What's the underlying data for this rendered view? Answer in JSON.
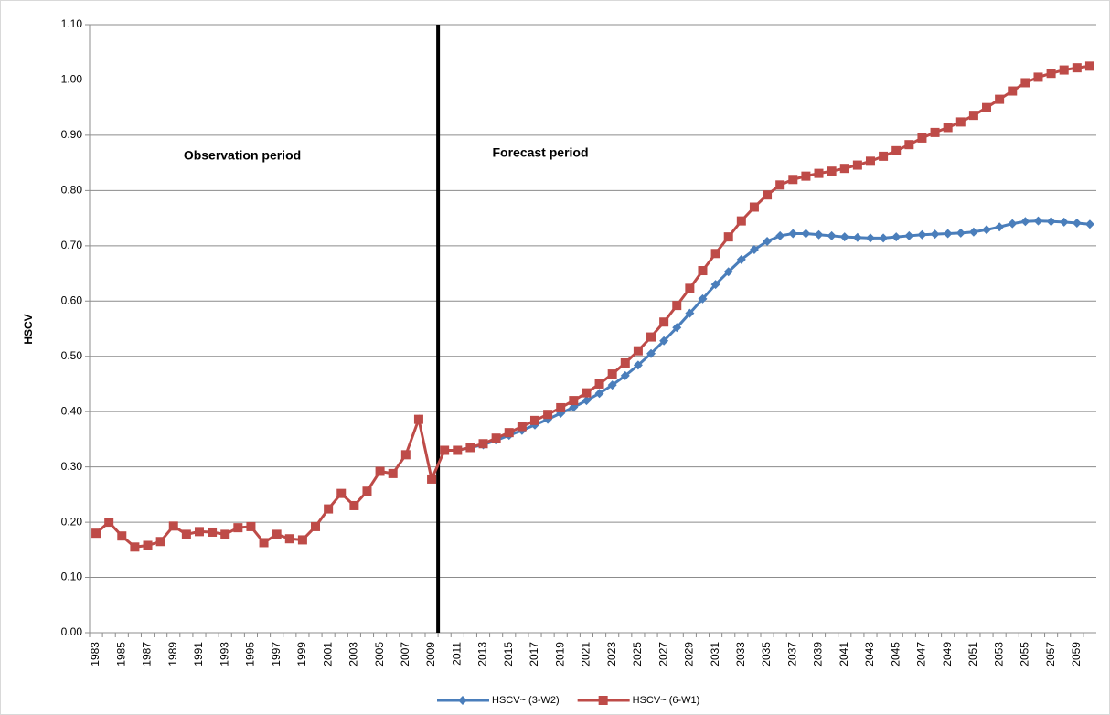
{
  "chart_data": {
    "type": "line",
    "y_label": "HSCV",
    "annotations": [
      "Observation period",
      "Forecast period"
    ],
    "categories": [
      "1983",
      null,
      "1985",
      null,
      "1987",
      null,
      "1989",
      null,
      "1991",
      null,
      "1993",
      null,
      "1995",
      null,
      "1997",
      null,
      "1999",
      null,
      "2001",
      null,
      "2003",
      null,
      "2005",
      null,
      "2007",
      null,
      "2009",
      null,
      "2011",
      null,
      "2013",
      null,
      "2015",
      null,
      "2017",
      null,
      "2019",
      null,
      "2021",
      null,
      "2023",
      null,
      "2025",
      null,
      "2027",
      null,
      "2029",
      null,
      "2031",
      null,
      "2033",
      null,
      "2035",
      null,
      "2037",
      null,
      "2039",
      null,
      "2041",
      null,
      "2043",
      null,
      "2045",
      null,
      "2047",
      null,
      "2049",
      null,
      "2051",
      null,
      "2053",
      null,
      "2055",
      null,
      "2057",
      null,
      "2059",
      null
    ],
    "series": [
      {
        "name": "HSCV~ (3-W2)",
        "color": "#4a7ebb",
        "marker": "diamond",
        "values": [
          null,
          null,
          null,
          null,
          null,
          null,
          null,
          null,
          null,
          null,
          null,
          null,
          null,
          null,
          null,
          null,
          null,
          null,
          null,
          null,
          null,
          null,
          null,
          null,
          null,
          null,
          null,
          0.33,
          0.33,
          0.335,
          0.34,
          0.348,
          0.357,
          0.366,
          0.376,
          0.386,
          0.397,
          0.408,
          0.42,
          0.433,
          0.448,
          0.465,
          0.484,
          0.505,
          0.528,
          0.552,
          0.578,
          0.604,
          0.63,
          0.653,
          0.675,
          0.693,
          0.708,
          0.718,
          0.722,
          0.722,
          0.72,
          0.718,
          0.716,
          0.715,
          0.714,
          0.714,
          0.716,
          0.718,
          0.72,
          0.721,
          0.722,
          0.723,
          0.725,
          0.729,
          0.734,
          0.74,
          0.744,
          0.745,
          0.744,
          0.743,
          0.741,
          0.739
        ]
      },
      {
        "name": "HSCV~ (6-W1)",
        "color": "#be4b48",
        "marker": "square",
        "values": [
          0.18,
          0.2,
          0.175,
          0.155,
          0.158,
          0.165,
          0.193,
          0.178,
          0.183,
          0.182,
          0.178,
          0.19,
          0.192,
          0.163,
          0.178,
          0.17,
          0.168,
          0.192,
          0.224,
          0.252,
          0.23,
          0.256,
          0.292,
          0.288,
          0.322,
          0.386,
          0.278,
          0.33,
          0.33,
          0.335,
          0.342,
          0.352,
          0.362,
          0.373,
          0.384,
          0.395,
          0.407,
          0.42,
          0.434,
          0.45,
          0.468,
          0.488,
          0.51,
          0.535,
          0.562,
          0.592,
          0.623,
          0.655,
          0.686,
          0.716,
          0.745,
          0.77,
          0.792,
          0.81,
          0.82,
          0.826,
          0.831,
          0.835,
          0.84,
          0.846,
          0.853,
          0.862,
          0.872,
          0.883,
          0.895,
          0.905,
          0.914,
          0.924,
          0.936,
          0.95,
          0.965,
          0.98,
          0.995,
          1.005,
          1.012,
          1.018,
          1.022,
          1.025
        ]
      }
    ],
    "ylim": [
      0,
      1.1
    ],
    "yticks": [
      {
        "value": 0,
        "label": "0.00"
      },
      {
        "value": 0.1,
        "label": "0.10"
      },
      {
        "value": 0.2,
        "label": "0.20"
      },
      {
        "value": 0.3,
        "label": "0.30"
      },
      {
        "value": 0.4,
        "label": "0.40"
      },
      {
        "value": 0.5,
        "label": "0.50"
      },
      {
        "value": 0.6,
        "label": "0.60"
      },
      {
        "value": 0.7,
        "label": "0.70"
      },
      {
        "value": 0.8,
        "label": "0.80"
      },
      {
        "value": 0.9,
        "label": "0.90"
      },
      {
        "value": 1.0,
        "label": "1.00"
      },
      {
        "value": 1.1,
        "label": "1.10"
      }
    ],
    "grid": true,
    "legend": "bottom"
  }
}
